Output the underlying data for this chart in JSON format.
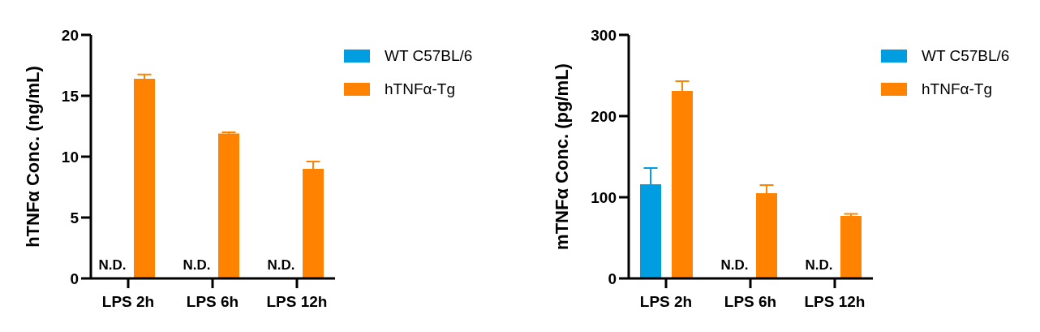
{
  "chart_data": [
    {
      "type": "bar",
      "ylabel": "hTNFα Conc. (ng/mL)",
      "categories": [
        "LPS 2h",
        "LPS 6h",
        "LPS 12h"
      ],
      "series": [
        {
          "name": "WT C57BL/6",
          "color": "#009de0",
          "values": [
            null,
            null,
            null
          ]
        },
        {
          "name": "hTNFα-Tg",
          "color": "#ff8200",
          "values": [
            16.4,
            11.9,
            9.0
          ],
          "errors": [
            0.35,
            0.1,
            0.6
          ]
        }
      ],
      "ylim": [
        0,
        20
      ],
      "yticks": [
        0,
        5,
        10,
        15,
        20
      ],
      "legend": "right",
      "annotations": [
        "N.D.",
        "N.D.",
        "N.D."
      ]
    },
    {
      "type": "bar",
      "ylabel": "mTNFα Conc. (pg/mL)",
      "categories": [
        "LPS 2h",
        "LPS 6h",
        "LPS 12h"
      ],
      "series": [
        {
          "name": "WT C57BL/6",
          "color": "#009de0",
          "values": [
            116,
            null,
            null
          ],
          "errors": [
            20,
            null,
            null
          ]
        },
        {
          "name": "hTNFα-Tg",
          "color": "#ff8200",
          "values": [
            231,
            105,
            77
          ],
          "errors": [
            12,
            10,
            2.5
          ]
        }
      ],
      "ylim": [
        0,
        300
      ],
      "yticks": [
        0,
        100,
        200,
        300
      ],
      "legend": "right",
      "annotations": [
        "N.D.",
        "N.D."
      ]
    }
  ]
}
